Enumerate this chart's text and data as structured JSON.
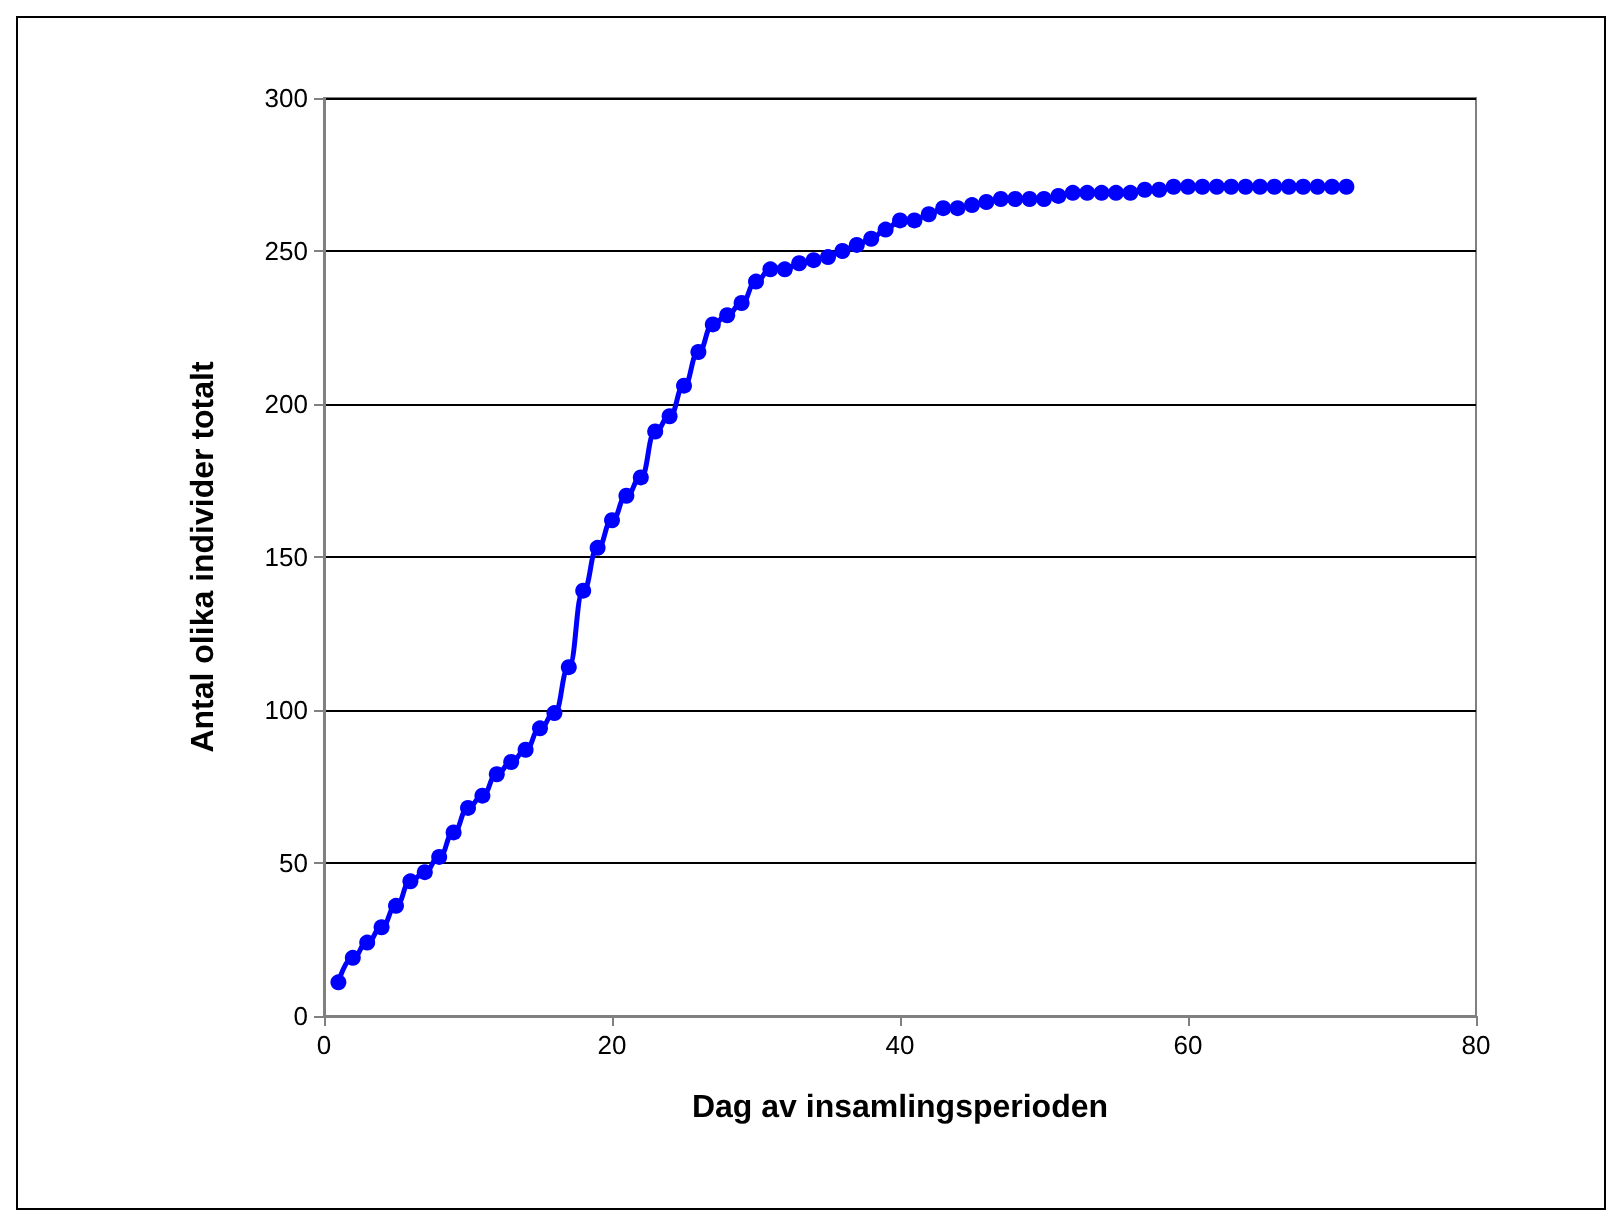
{
  "chart_data": {
    "type": "line",
    "xlabel": "Dag av insamlingsperioden",
    "ylabel": "Antal olika individer totalt",
    "x": [
      1,
      2,
      3,
      4,
      5,
      6,
      7,
      8,
      9,
      10,
      11,
      12,
      13,
      14,
      15,
      16,
      17,
      18,
      19,
      20,
      21,
      22,
      23,
      24,
      25,
      26,
      27,
      28,
      29,
      30,
      31,
      32,
      33,
      34,
      35,
      36,
      37,
      38,
      39,
      40,
      41,
      42,
      43,
      44,
      45,
      46,
      47,
      48,
      49,
      50,
      51,
      52,
      53,
      54,
      55,
      56,
      57,
      58,
      59,
      60,
      61,
      62,
      63,
      64,
      65,
      66,
      67,
      68,
      69,
      70,
      71
    ],
    "series": [
      {
        "color": "#0000ff",
        "values": [
          11,
          19,
          24,
          29,
          36,
          44,
          47,
          52,
          60,
          68,
          72,
          79,
          83,
          87,
          94,
          99,
          114,
          139,
          153,
          162,
          170,
          176,
          191,
          196,
          206,
          217,
          226,
          229,
          233,
          240,
          244,
          244,
          246,
          247,
          248,
          250,
          252,
          254,
          257,
          260,
          260,
          262,
          264,
          264,
          265,
          266,
          267,
          267,
          267,
          267,
          268,
          269,
          269,
          269,
          269,
          269,
          270,
          270,
          271,
          271,
          271,
          271,
          271,
          271,
          271,
          271,
          271,
          271,
          271,
          271,
          271
        ]
      }
    ],
    "xlim": [
      0,
      80
    ],
    "xticks": [
      0,
      20,
      40,
      60,
      80
    ],
    "ylim": [
      0,
      300
    ],
    "yticks": [
      0,
      50,
      100,
      150,
      200,
      250,
      300
    ],
    "grid": "y",
    "marker": "circle",
    "line_style": "solid"
  }
}
